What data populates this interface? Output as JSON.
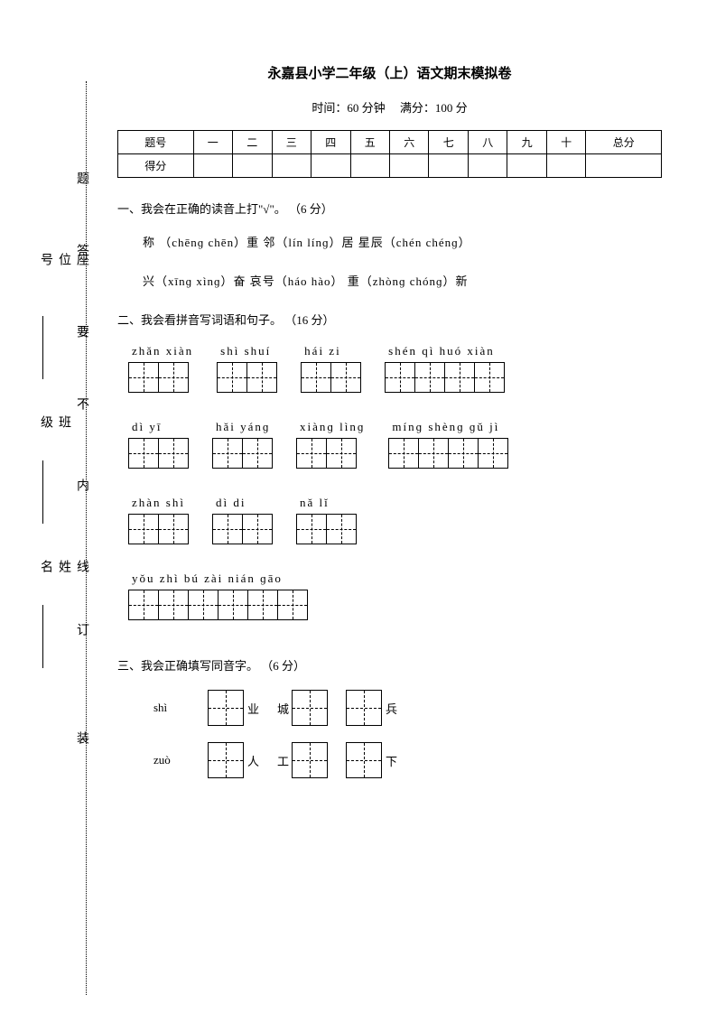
{
  "header": {
    "title": "永嘉县小学二年级（上）语文期末模拟卷",
    "time_label": "时间：60 分钟",
    "full_score_label": "满分：100 分"
  },
  "score_table": {
    "row1": [
      "题号",
      "一",
      "二",
      "三",
      "四",
      "五",
      "六",
      "七",
      "八",
      "九",
      "十",
      "总分"
    ],
    "row2_label": "得分"
  },
  "q1": {
    "title": "一、我会在正确的读音上打\"√\"。 （6 分）",
    "line1": "称 （chēnɡ  chēn）重      邻（lín  línɡ）居      星辰（chén  chénɡ）",
    "line2": "兴（xīnɡ  xìnɡ）奋     哀号（háo  hào）       重（zhònɡ  chónɡ）新"
  },
  "q2": {
    "title": "二、我会看拼音写词语和句子。 （16 分）",
    "row1": [
      {
        "pinyin": "zhǎn xiàn",
        "cells": 2
      },
      {
        "pinyin": "shì  shuí",
        "cells": 2
      },
      {
        "pinyin": "hái   zi",
        "cells": 2
      },
      {
        "pinyin": "shén   qì   huó  xiàn",
        "cells": 4
      }
    ],
    "row2": [
      {
        "pinyin": "dì   yī",
        "cells": 2
      },
      {
        "pinyin": "hǎi  yánɡ",
        "cells": 2
      },
      {
        "pinyin": "xiànɡ  lìnɡ",
        "cells": 2
      },
      {
        "pinyin": "mínɡ  shènɡ  ɡǔ    jì",
        "cells": 4
      }
    ],
    "row3": [
      {
        "pinyin": "zhàn shì",
        "cells": 2
      },
      {
        "pinyin": "dì   di",
        "cells": 2
      },
      {
        "pinyin": "nǎ   lǐ",
        "cells": 2
      }
    ],
    "row4": [
      {
        "pinyin": "yǒu  zhì  bú   zài  nián  ɡāo",
        "cells": 6
      }
    ]
  },
  "q3": {
    "title": "三、我会正确填写同音字。 （6 分）",
    "rows": [
      {
        "label": "shì",
        "items": [
          {
            "suffix": "业"
          },
          {
            "prefix": "城"
          },
          {
            "suffix": "兵"
          }
        ]
      },
      {
        "label": "zuò",
        "items": [
          {
            "suffix": "人"
          },
          {
            "prefix": "工"
          },
          {
            "suffix": "下"
          }
        ]
      }
    ]
  },
  "side": {
    "markers": [
      "题",
      "答",
      "要",
      "不",
      "内",
      "线",
      "订",
      "装"
    ],
    "fields": [
      "座位号",
      "班级",
      "姓名"
    ]
  }
}
